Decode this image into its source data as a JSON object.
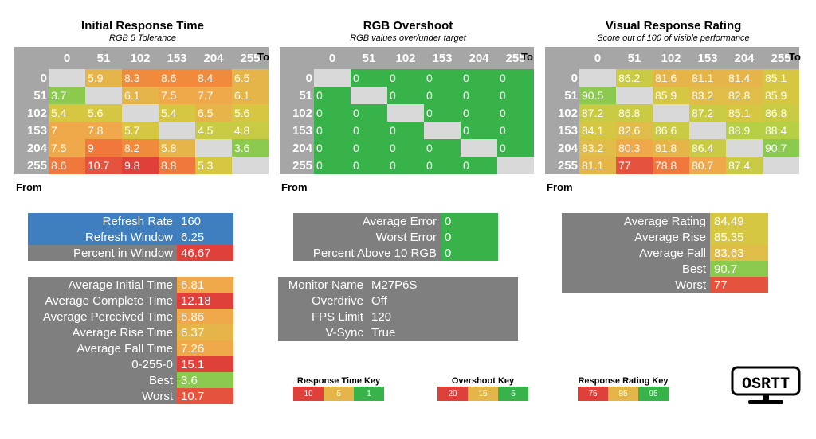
{
  "colors": {
    "gray": "#7f7f7f",
    "header_gray": "#a6a6a6",
    "blue": "#3f7fbf",
    "red_dark": "#e0403a",
    "red": "#e5533e",
    "orange": "#f28a3c",
    "orange_light": "#efa84a",
    "gold": "#e6b54a",
    "yellow": "#d6c743",
    "yellow_green": "#b7cf45",
    "green_light": "#8cca4f",
    "green": "#37b34a",
    "diagonal": "#d9d9d9"
  },
  "headers": [
    "0",
    "51",
    "102",
    "153",
    "204",
    "255"
  ],
  "to_label": "To",
  "from_label": "From",
  "panels": [
    {
      "title": "Initial Response Time",
      "subtitle": "RGB 5 Tolerance",
      "rows": [
        {
          "label": "0",
          "cells": [
            {
              "v": "",
              "c": "#d9d9d9"
            },
            {
              "v": "5.9",
              "c": "#e6b54a"
            },
            {
              "v": "8.3",
              "c": "#f08a3c"
            },
            {
              "v": "8.6",
              "c": "#f28a3c"
            },
            {
              "v": "8.4",
              "c": "#f08a3c"
            },
            {
              "v": "6.5",
              "c": "#e6b54a"
            }
          ]
        },
        {
          "label": "51",
          "cells": [
            {
              "v": "3.7",
              "c": "#8cca4f"
            },
            {
              "v": "",
              "c": "#d9d9d9"
            },
            {
              "v": "6.1",
              "c": "#e6b54a"
            },
            {
              "v": "7.5",
              "c": "#efa84a"
            },
            {
              "v": "7.7",
              "c": "#efa84a"
            },
            {
              "v": "6.1",
              "c": "#e6b54a"
            }
          ]
        },
        {
          "label": "102",
          "cells": [
            {
              "v": "5.4",
              "c": "#d6c743"
            },
            {
              "v": "5.6",
              "c": "#d6c743"
            },
            {
              "v": "",
              "c": "#d9d9d9"
            },
            {
              "v": "5.4",
              "c": "#d6c743"
            },
            {
              "v": "6.5",
              "c": "#e6b54a"
            },
            {
              "v": "5.6",
              "c": "#d6c743"
            }
          ]
        },
        {
          "label": "153",
          "cells": [
            {
              "v": "7",
              "c": "#efa84a"
            },
            {
              "v": "7.8",
              "c": "#efa84a"
            },
            {
              "v": "5.7",
              "c": "#d6c743"
            },
            {
              "v": "",
              "c": "#d9d9d9"
            },
            {
              "v": "4.5",
              "c": "#c9cb45"
            },
            {
              "v": "4.8",
              "c": "#c9cb45"
            }
          ]
        },
        {
          "label": "204",
          "cells": [
            {
              "v": "7.5",
              "c": "#efa84a"
            },
            {
              "v": "9",
              "c": "#f0783c"
            },
            {
              "v": "8.2",
              "c": "#f08a3c"
            },
            {
              "v": "5.8",
              "c": "#e6b54a"
            },
            {
              "v": "",
              "c": "#d9d9d9"
            },
            {
              "v": "3.6",
              "c": "#8cca4f"
            }
          ]
        },
        {
          "label": "255",
          "cells": [
            {
              "v": "8.6",
              "c": "#f0783c"
            },
            {
              "v": "10.7",
              "c": "#e5533e"
            },
            {
              "v": "9.8",
              "c": "#e0403a"
            },
            {
              "v": "8.8",
              "c": "#f0783c"
            },
            {
              "v": "5.3",
              "c": "#d6c743"
            },
            {
              "v": "",
              "c": "#d9d9d9"
            }
          ]
        }
      ]
    },
    {
      "title": "RGB Overshoot",
      "subtitle": "RGB values over/under target",
      "rows": [
        {
          "label": "0",
          "cells": [
            {
              "v": "",
              "c": "#d9d9d9"
            },
            {
              "v": "0",
              "c": "#37b34a"
            },
            {
              "v": "0",
              "c": "#37b34a"
            },
            {
              "v": "0",
              "c": "#37b34a"
            },
            {
              "v": "0",
              "c": "#37b34a"
            },
            {
              "v": "0",
              "c": "#37b34a"
            }
          ]
        },
        {
          "label": "51",
          "cells": [
            {
              "v": "0",
              "c": "#37b34a"
            },
            {
              "v": "",
              "c": "#d9d9d9"
            },
            {
              "v": "0",
              "c": "#37b34a"
            },
            {
              "v": "0",
              "c": "#37b34a"
            },
            {
              "v": "0",
              "c": "#37b34a"
            },
            {
              "v": "0",
              "c": "#37b34a"
            }
          ]
        },
        {
          "label": "102",
          "cells": [
            {
              "v": "0",
              "c": "#37b34a"
            },
            {
              "v": "0",
              "c": "#37b34a"
            },
            {
              "v": "",
              "c": "#d9d9d9"
            },
            {
              "v": "0",
              "c": "#37b34a"
            },
            {
              "v": "0",
              "c": "#37b34a"
            },
            {
              "v": "0",
              "c": "#37b34a"
            }
          ]
        },
        {
          "label": "153",
          "cells": [
            {
              "v": "0",
              "c": "#37b34a"
            },
            {
              "v": "0",
              "c": "#37b34a"
            },
            {
              "v": "0",
              "c": "#37b34a"
            },
            {
              "v": "",
              "c": "#d9d9d9"
            },
            {
              "v": "0",
              "c": "#37b34a"
            },
            {
              "v": "0",
              "c": "#37b34a"
            }
          ]
        },
        {
          "label": "204",
          "cells": [
            {
              "v": "0",
              "c": "#37b34a"
            },
            {
              "v": "0",
              "c": "#37b34a"
            },
            {
              "v": "0",
              "c": "#37b34a"
            },
            {
              "v": "0",
              "c": "#37b34a"
            },
            {
              "v": "",
              "c": "#d9d9d9"
            },
            {
              "v": "0",
              "c": "#37b34a"
            }
          ]
        },
        {
          "label": "255",
          "cells": [
            {
              "v": "0",
              "c": "#37b34a"
            },
            {
              "v": "0",
              "c": "#37b34a"
            },
            {
              "v": "0",
              "c": "#37b34a"
            },
            {
              "v": "0",
              "c": "#37b34a"
            },
            {
              "v": "0",
              "c": "#37b34a"
            },
            {
              "v": "",
              "c": "#d9d9d9"
            }
          ]
        }
      ]
    },
    {
      "title": "Visual Response Rating",
      "subtitle": "Score out of 100 of visible performance",
      "rows": [
        {
          "label": "0",
          "cells": [
            {
              "v": "",
              "c": "#d9d9d9"
            },
            {
              "v": "86.2",
              "c": "#c9cb45"
            },
            {
              "v": "81.6",
              "c": "#e6b54a"
            },
            {
              "v": "81.1",
              "c": "#e6b54a"
            },
            {
              "v": "81.4",
              "c": "#e6b54a"
            },
            {
              "v": "85.1",
              "c": "#d6c743"
            }
          ]
        },
        {
          "label": "51",
          "cells": [
            {
              "v": "90.5",
              "c": "#8cca4f"
            },
            {
              "v": "",
              "c": "#d9d9d9"
            },
            {
              "v": "85.9",
              "c": "#d6c743"
            },
            {
              "v": "83.2",
              "c": "#e0bd48"
            },
            {
              "v": "82.8",
              "c": "#e0bd48"
            },
            {
              "v": "85.9",
              "c": "#d6c743"
            }
          ]
        },
        {
          "label": "102",
          "cells": [
            {
              "v": "87.2",
              "c": "#c9cb45"
            },
            {
              "v": "86.8",
              "c": "#c9cb45"
            },
            {
              "v": "",
              "c": "#d9d9d9"
            },
            {
              "v": "87.2",
              "c": "#c9cb45"
            },
            {
              "v": "85.1",
              "c": "#d6c743"
            },
            {
              "v": "86.8",
              "c": "#c9cb45"
            }
          ]
        },
        {
          "label": "153",
          "cells": [
            {
              "v": "84.1",
              "c": "#d6c743"
            },
            {
              "v": "82.6",
              "c": "#e0bd48"
            },
            {
              "v": "86.6",
              "c": "#c9cb45"
            },
            {
              "v": "",
              "c": "#d9d9d9"
            },
            {
              "v": "88.9",
              "c": "#b7cf45"
            },
            {
              "v": "88.4",
              "c": "#b7cf45"
            }
          ]
        },
        {
          "label": "204",
          "cells": [
            {
              "v": "83.2",
              "c": "#e0bd48"
            },
            {
              "v": "80.3",
              "c": "#efa84a"
            },
            {
              "v": "81.8",
              "c": "#e6b54a"
            },
            {
              "v": "86.4",
              "c": "#c9cb45"
            },
            {
              "v": "",
              "c": "#d9d9d9"
            },
            {
              "v": "90.7",
              "c": "#8cca4f"
            }
          ]
        },
        {
          "label": "255",
          "cells": [
            {
              "v": "81.1",
              "c": "#e6b54a"
            },
            {
              "v": "77",
              "c": "#e5533e"
            },
            {
              "v": "78.8",
              "c": "#f0783c"
            },
            {
              "v": "80.7",
              "c": "#efa84a"
            },
            {
              "v": "87.4",
              "c": "#c9cb45"
            },
            {
              "v": "",
              "c": "#d9d9d9"
            }
          ]
        }
      ]
    }
  ],
  "refresh_box": [
    {
      "label": "Refresh Rate",
      "value": "160",
      "lc": "#3f7fbf",
      "vc": "#3f7fbf"
    },
    {
      "label": "Refresh Window",
      "value": "6.25",
      "lc": "#3f7fbf",
      "vc": "#3f7fbf"
    },
    {
      "label": "Percent in Window",
      "value": "46.67",
      "lc": "#7f7f7f",
      "vc": "#e0403a"
    }
  ],
  "time_stats": [
    {
      "label": "Average Initial Time",
      "value": "6.81",
      "vc": "#efa84a"
    },
    {
      "label": "Average Complete Time",
      "value": "12.18",
      "vc": "#e0403a"
    },
    {
      "label": "Average Perceived Time",
      "value": "6.86",
      "vc": "#efa84a"
    },
    {
      "label": "Average Rise Time",
      "value": "6.37",
      "vc": "#e6b54a"
    },
    {
      "label": "Average Fall Time",
      "value": "7.26",
      "vc": "#efa84a"
    },
    {
      "label": "0-255-0",
      "value": "15.1",
      "vc": "#e0403a"
    },
    {
      "label": "Best",
      "value": "3.6",
      "vc": "#8cca4f"
    },
    {
      "label": "Worst",
      "value": "10.7",
      "vc": "#e5533e"
    }
  ],
  "error_box": [
    {
      "label": "Average Error",
      "value": "0",
      "vc": "#37b34a"
    },
    {
      "label": "Worst Error",
      "value": "0",
      "vc": "#37b34a"
    },
    {
      "label": "Percent Above 10 RGB",
      "value": "0",
      "vc": "#37b34a"
    }
  ],
  "monitor_box": [
    {
      "label": "Monitor Name",
      "value": "M27P6S"
    },
    {
      "label": "Overdrive",
      "value": "Off"
    },
    {
      "label": "FPS Limit",
      "value": "120"
    },
    {
      "label": "V-Sync",
      "value": "True"
    }
  ],
  "rating_box": [
    {
      "label": "Average Rating",
      "value": "84.49",
      "vc": "#d6c743"
    },
    {
      "label": "Average Rise",
      "value": "85.35",
      "vc": "#d6c743"
    },
    {
      "label": "Average Fall",
      "value": "83.63",
      "vc": "#e0bd48"
    },
    {
      "label": "Best",
      "value": "90.7",
      "vc": "#8cca4f"
    },
    {
      "label": "Worst",
      "value": "77",
      "vc": "#e5533e"
    }
  ],
  "keys": [
    {
      "title": "Response Time Key",
      "cells": [
        {
          "v": "10",
          "c": "#e0403a"
        },
        {
          "v": "5",
          "c": "#e6b54a"
        },
        {
          "v": "1",
          "c": "#37b34a"
        }
      ]
    },
    {
      "title": "Overshoot Key",
      "cells": [
        {
          "v": "20",
          "c": "#e0403a"
        },
        {
          "v": "15",
          "c": "#e6b54a"
        },
        {
          "v": "5",
          "c": "#37b34a"
        }
      ]
    },
    {
      "title": "Response Rating Key",
      "cells": [
        {
          "v": "75",
          "c": "#e0403a"
        },
        {
          "v": "85",
          "c": "#e6b54a"
        },
        {
          "v": "95",
          "c": "#37b34a"
        }
      ]
    }
  ],
  "logo_text": "OSRTT"
}
